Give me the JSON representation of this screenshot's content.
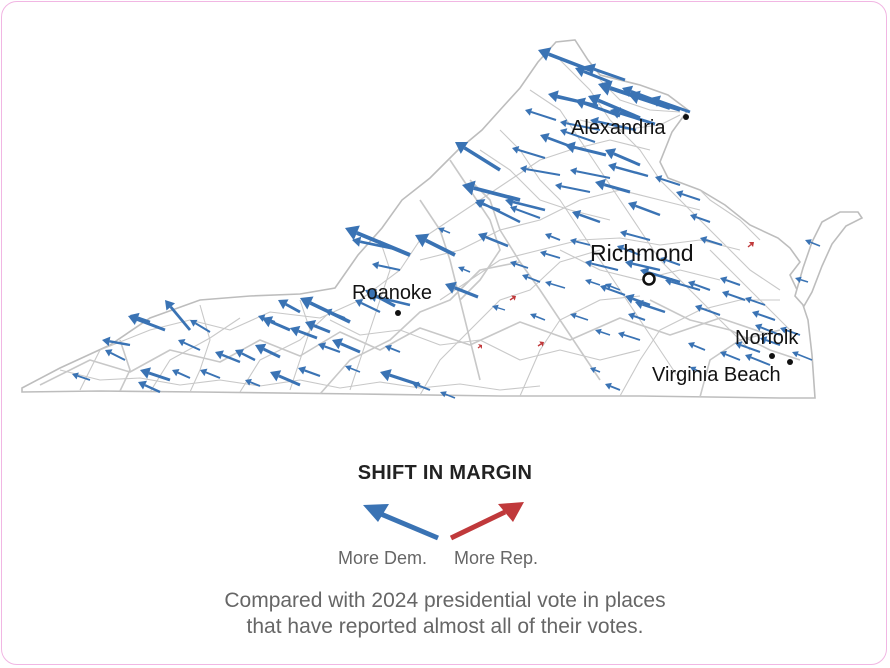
{
  "map": {
    "region": "Virginia",
    "cities": [
      {
        "name": "Alexandria",
        "marker": "dot"
      },
      {
        "name": "Richmond",
        "marker": "capital-circle"
      },
      {
        "name": "Roanoke",
        "marker": "dot"
      },
      {
        "name": "Norfolk",
        "marker": "dot"
      },
      {
        "name": "Virginia Beach",
        "marker": "dot"
      }
    ],
    "arrow_colors": {
      "dem": "#3a73b4",
      "rep": "#c0393b"
    },
    "boundary_color": "#c8c8c8"
  },
  "legend": {
    "title": "SHIFT IN MARGIN",
    "dem_label": "More Dem.",
    "rep_label": "More Rep."
  },
  "note": {
    "line1": "Compared with 2024 presidential vote in places",
    "line2": "that have reported almost all of their votes."
  }
}
